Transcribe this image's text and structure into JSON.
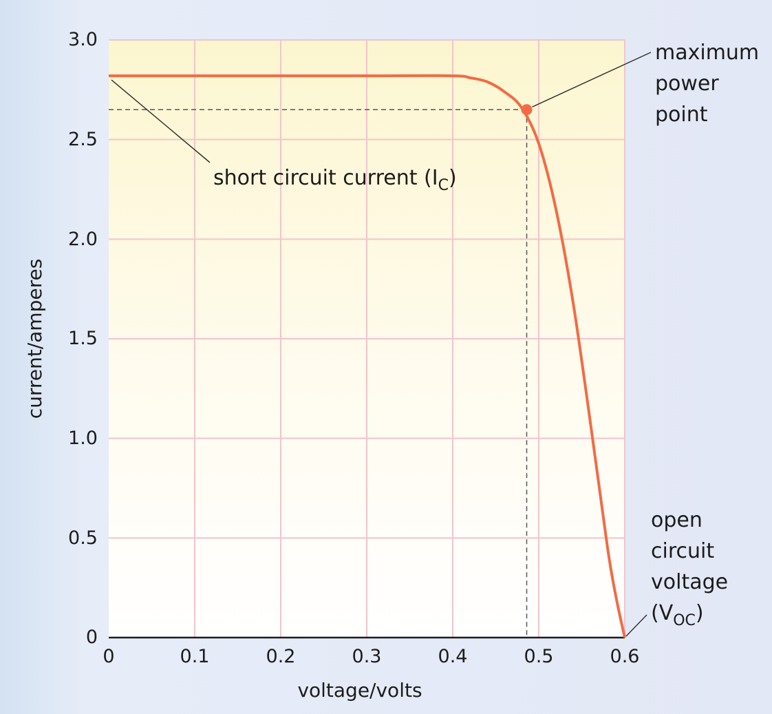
{
  "chart_data": {
    "type": "line",
    "xlabel": "voltage/volts",
    "ylabel": "current/amperes",
    "xlim": [
      0,
      0.6
    ],
    "ylim": [
      0,
      3.0
    ],
    "grid": true,
    "x_ticks": [
      "0",
      "0.1",
      "0.2",
      "0.3",
      "0.4",
      "0.5",
      "0.6"
    ],
    "y_ticks": [
      "0",
      "0.5",
      "1.0",
      "1.5",
      "2.0",
      "2.5",
      "3.0"
    ],
    "series": [
      {
        "x": [
          0,
          0.1,
          0.2,
          0.3,
          0.4,
          0.42,
          0.44,
          0.46,
          0.48,
          0.5,
          0.52,
          0.54,
          0.56,
          0.58,
          0.59,
          0.6
        ],
        "y": [
          2.82,
          2.82,
          2.82,
          2.82,
          2.82,
          2.81,
          2.79,
          2.74,
          2.66,
          2.48,
          2.15,
          1.68,
          1.08,
          0.45,
          0.2,
          0.0
        ]
      }
    ],
    "maximum_power_point": {
      "x": 0.486,
      "y": 2.65
    },
    "annotations": {
      "mpp": [
        "maximum",
        "power",
        "point"
      ],
      "isc_text": "short circuit current (I",
      "isc_sub": "C",
      "isc_close": ")",
      "voc": [
        "open",
        "circuit",
        "voltage"
      ],
      "voc_open": "(V",
      "voc_sub": "OC",
      "voc_close": ")"
    },
    "colors": {
      "curve": "#f26b45",
      "grid": "#f2c4cc",
      "plot_bg_top": "#fcf6cf",
      "plot_bg_bottom": "#ffffff"
    }
  }
}
